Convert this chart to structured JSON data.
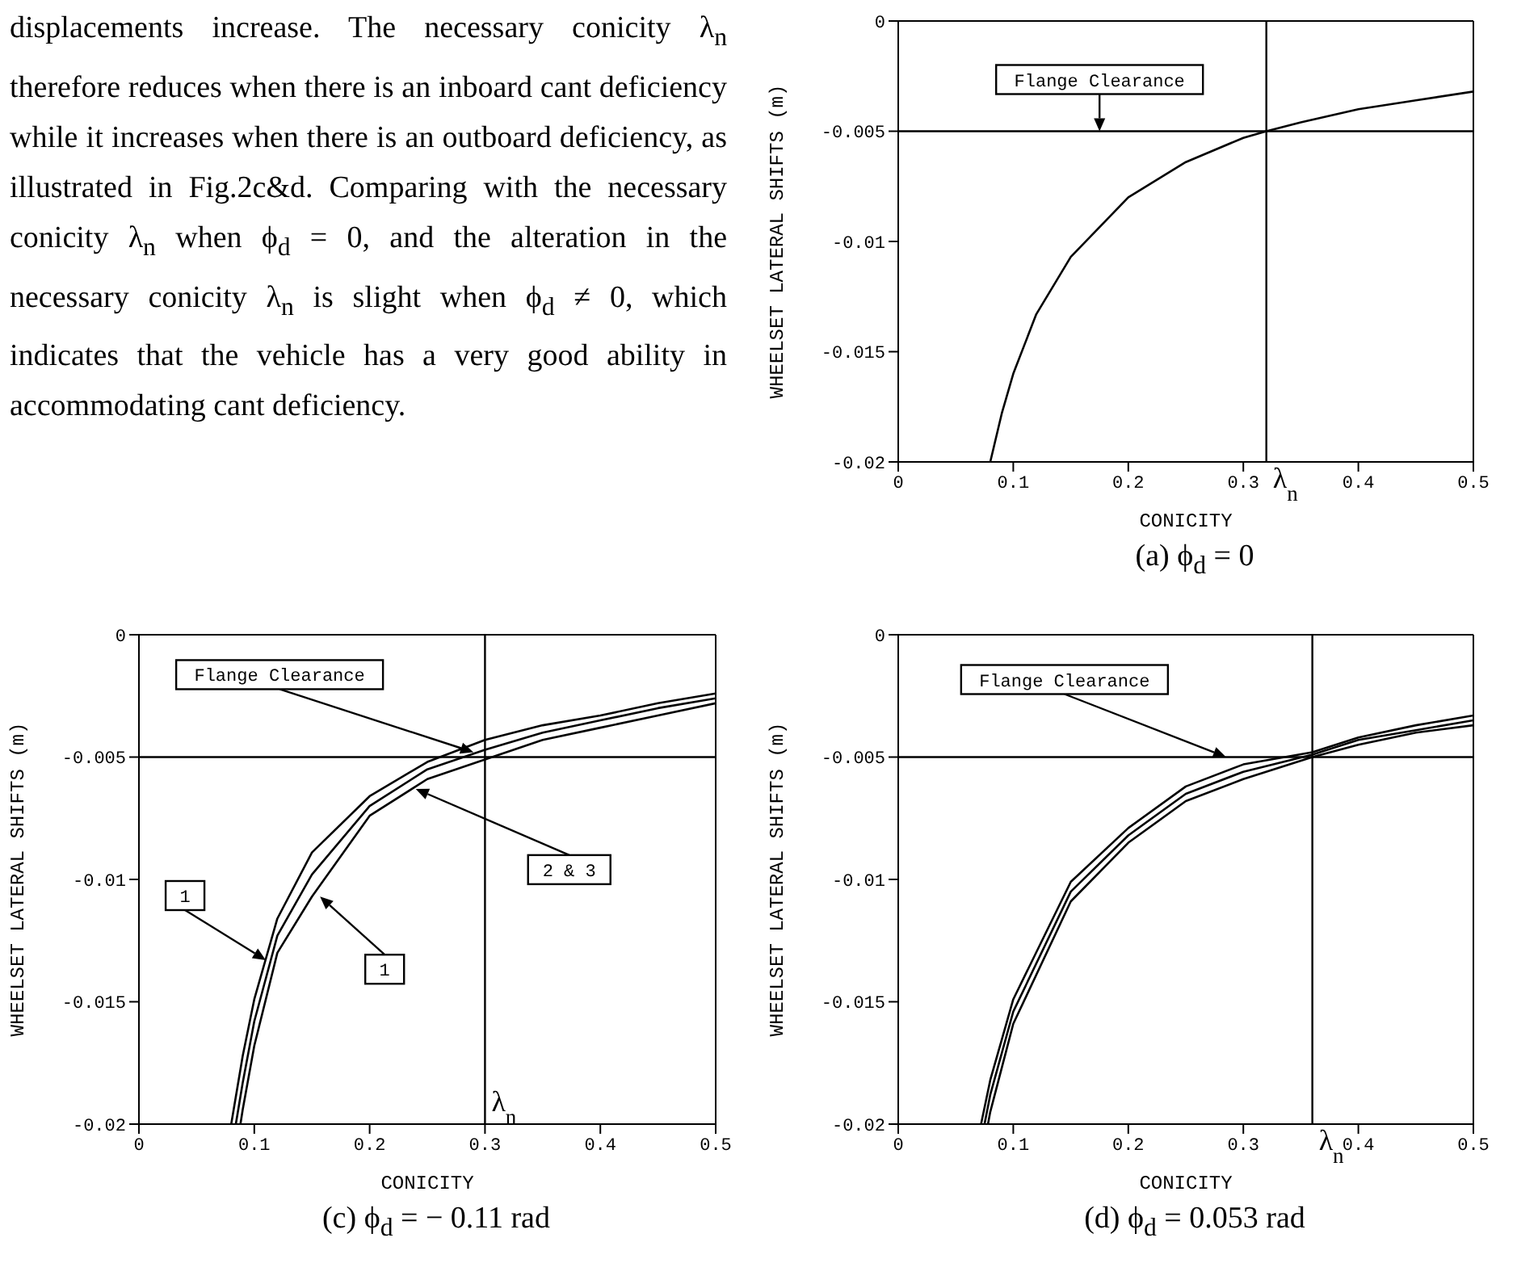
{
  "chart_data": [
    {
      "type": "other",
      "annotations": [
        "displacements increase.  The necessary conicity λ$_{n}$ therefore reduces when there is an inboard cant deficiency while it increases when there is an outboard deficiency, as illustrated in Fig.2c&d. Comparing with the necessary conicity λ$_{n}$ when ϕ$_{d}$ = 0, and the alteration in the necessary conicity λ$_{n}$ is slight when ϕ$_{d}$ ≠ 0, which indicates that the vehicle has a very good ability in accommodating cant deficiency."
      ]
    },
    {
      "type": "line",
      "title": "(a) ϕ$_{d}$ = 0",
      "xlabel": "CONICITY",
      "ylabel": "WHEELSET LATERAL SHIFTS (m)",
      "xlim": [
        0,
        0.5
      ],
      "ylim": [
        -0.02,
        0
      ],
      "xticks": [
        0,
        0.1,
        0.2,
        0.3,
        0.4,
        0.5
      ],
      "yticks": [
        0,
        -0.005,
        -0.01,
        -0.015,
        -0.02
      ],
      "ref_lines": [
        {
          "axis": "y",
          "value": -0.005
        },
        {
          "axis": "x",
          "value": 0.32,
          "label": "λ$_{n}$"
        }
      ],
      "annotations": [
        {
          "text": "Flange Clearance",
          "x": 0.175,
          "y": -0.005
        }
      ],
      "series": [
        {
          "color": "#000000",
          "x": [
            0.08,
            0.09,
            0.1,
            0.12,
            0.15,
            0.2,
            0.25,
            0.3,
            0.32,
            0.35,
            0.4,
            0.45,
            0.5
          ],
          "values": [
            -0.02,
            -0.0178,
            -0.016,
            -0.0133,
            -0.0107,
            -0.008,
            -0.0064,
            -0.0053,
            -0.005,
            -0.0046,
            -0.004,
            -0.0036,
            -0.0032
          ]
        }
      ]
    },
    {
      "type": "line",
      "title": "(c) ϕ$_{d}$ = − 0.11 rad",
      "xlabel": "CONICITY",
      "ylabel": "WHEELSET LATERAL SHIFTS (m)",
      "xlim": [
        0,
        0.5
      ],
      "ylim": [
        -0.02,
        0
      ],
      "xticks": [
        0,
        0.1,
        0.2,
        0.3,
        0.4,
        0.5
      ],
      "yticks": [
        0,
        -0.005,
        -0.01,
        -0.015,
        -0.02
      ],
      "ref_lines": [
        {
          "axis": "y",
          "value": -0.005
        },
        {
          "axis": "x",
          "value": 0.3,
          "label": "λ$_{n}$"
        }
      ],
      "annotations": [
        {
          "text": "Flange Clearance",
          "x": 0.29,
          "y": -0.0048
        },
        {
          "text": "1",
          "x": 0.11,
          "y": -0.0133
        },
        {
          "text": "2 & 3",
          "x": 0.24,
          "y": -0.0063
        },
        {
          "text": "1",
          "x": 0.157,
          "y": -0.0107
        }
      ],
      "series": [
        {
          "color": "#000000",
          "x": [
            0.08,
            0.09,
            0.1,
            0.12,
            0.15,
            0.2,
            0.25,
            0.3,
            0.35,
            0.4,
            0.45,
            0.5
          ],
          "values": [
            -0.02,
            -0.0172,
            -0.0149,
            -0.0116,
            -0.0089,
            -0.0066,
            -0.0052,
            -0.0043,
            -0.0037,
            -0.0033,
            -0.0028,
            -0.0024
          ]
        },
        {
          "color": "#000000",
          "x": [
            0.084,
            0.09,
            0.1,
            0.12,
            0.15,
            0.2,
            0.25,
            0.3,
            0.35,
            0.4,
            0.45,
            0.5
          ],
          "values": [
            -0.02,
            -0.0183,
            -0.0158,
            -0.0123,
            -0.0098,
            -0.007,
            -0.0055,
            -0.0047,
            -0.004,
            -0.0035,
            -0.003,
            -0.0026
          ]
        },
        {
          "color": "#000000",
          "x": [
            0.088,
            0.09,
            0.1,
            0.12,
            0.15,
            0.2,
            0.25,
            0.3,
            0.35,
            0.4,
            0.45,
            0.5
          ],
          "values": [
            -0.02,
            -0.0194,
            -0.0168,
            -0.013,
            -0.0107,
            -0.0074,
            -0.0059,
            -0.0051,
            -0.0043,
            -0.0038,
            -0.0033,
            -0.0028
          ]
        }
      ]
    },
    {
      "type": "line",
      "title": "(d) ϕ$_{d}$ = 0.053 rad",
      "xlabel": "CONICITY",
      "ylabel": "WHEELSET LATERAL SHIFTS (m)",
      "xlim": [
        0,
        0.5
      ],
      "ylim": [
        -0.02,
        0
      ],
      "xticks": [
        0,
        0.1,
        0.2,
        0.3,
        0.4,
        0.5
      ],
      "yticks": [
        0,
        -0.005,
        -0.01,
        -0.015,
        -0.02
      ],
      "ref_lines": [
        {
          "axis": "y",
          "value": -0.005
        },
        {
          "axis": "x",
          "value": 0.36,
          "label": "λ$_{n}$"
        }
      ],
      "annotations": [
        {
          "text": "Flange Clearance",
          "x": 0.285,
          "y": -0.005
        }
      ],
      "series": [
        {
          "color": "#000000",
          "x": [
            0.072,
            0.08,
            0.1,
            0.15,
            0.2,
            0.25,
            0.3,
            0.36,
            0.4,
            0.45,
            0.5
          ],
          "values": [
            -0.02,
            -0.0182,
            -0.0149,
            -0.0101,
            -0.0079,
            -0.0062,
            -0.0053,
            -0.0048,
            -0.0042,
            -0.0037,
            -0.0033
          ]
        },
        {
          "color": "#000000",
          "x": [
            0.075,
            0.08,
            0.1,
            0.15,
            0.2,
            0.25,
            0.3,
            0.36,
            0.4,
            0.45,
            0.5
          ],
          "values": [
            -0.02,
            -0.0188,
            -0.0154,
            -0.0105,
            -0.0082,
            -0.0065,
            -0.0056,
            -0.0049,
            -0.0043,
            -0.0039,
            -0.0035
          ]
        },
        {
          "color": "#000000",
          "x": [
            0.078,
            0.08,
            0.1,
            0.15,
            0.2,
            0.25,
            0.3,
            0.36,
            0.4,
            0.45,
            0.5
          ],
          "values": [
            -0.02,
            -0.0195,
            -0.0159,
            -0.0109,
            -0.0085,
            -0.0068,
            -0.0059,
            -0.005,
            -0.0045,
            -0.004,
            -0.0037
          ]
        }
      ]
    }
  ]
}
